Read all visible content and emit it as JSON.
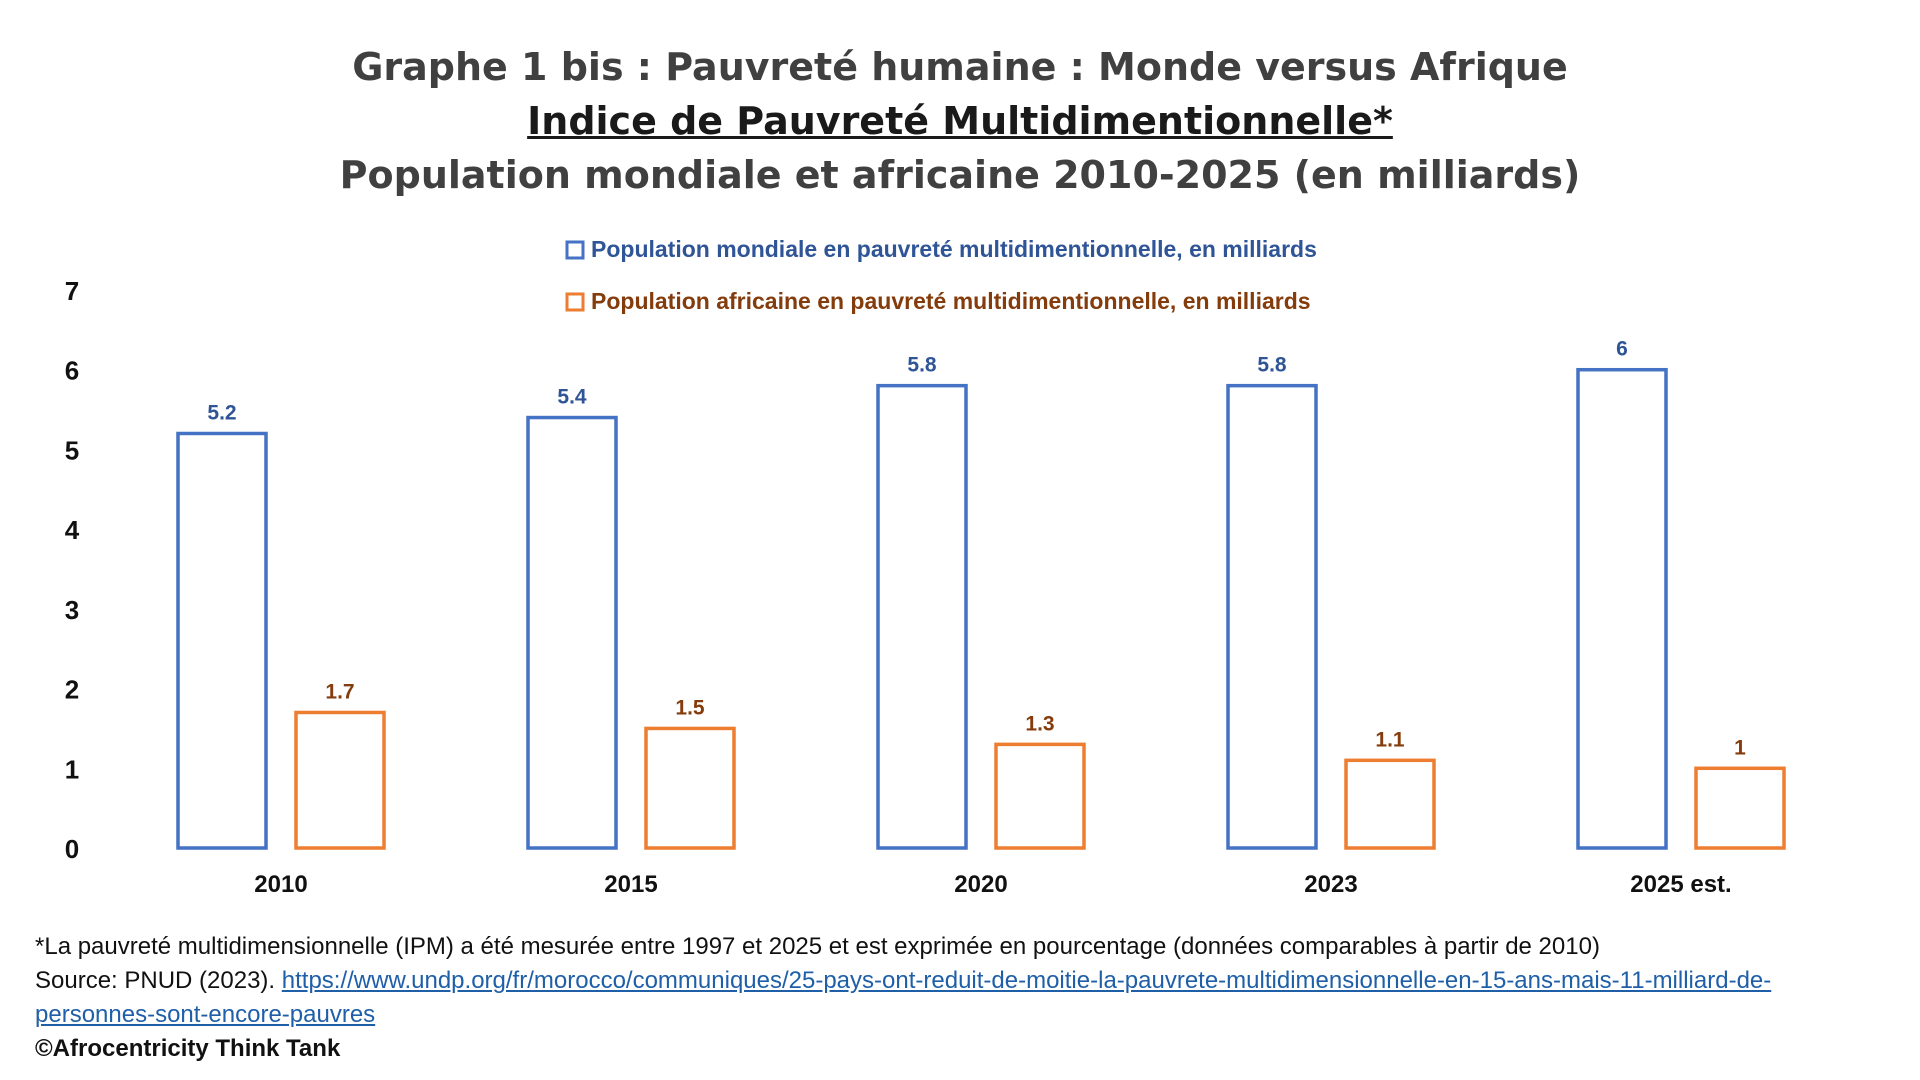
{
  "titles": {
    "line1": "Graphe 1 bis : Pauvreté humaine : Monde versus Afrique",
    "line2": "Indice de Pauvreté Multidimentionnelle*",
    "line3": "Population mondiale et africaine 2010-2025 (en milliards)"
  },
  "colors": {
    "world": "#4472c4",
    "africa": "#ed7d31",
    "world_text": "#2f5597",
    "africa_text": "#843c0c"
  },
  "chart_data": {
    "type": "bar",
    "categories": [
      "2010",
      "2015",
      "2020",
      "2023",
      "2025 est."
    ],
    "series": [
      {
        "name": "Population mondiale en pauvreté multidimentionnelle, en milliards",
        "values": [
          5.2,
          5.4,
          5.8,
          5.8,
          6
        ],
        "labels": [
          "5.2",
          "5.4",
          "5.8",
          "5.8",
          "6"
        ]
      },
      {
        "name": "Population africaine en pauvreté multidimentionnelle, en milliards",
        "values": [
          1.7,
          1.5,
          1.3,
          1.1,
          1
        ],
        "labels": [
          "1.7",
          "1.5",
          "1.3",
          "1.1",
          "1"
        ]
      }
    ],
    "yticks": [
      "0",
      "1",
      "2",
      "3",
      "4",
      "5",
      "6",
      "7"
    ],
    "ylim": [
      0,
      7
    ],
    "title": "Population mondiale et africaine 2010-2025 (en milliards)",
    "xlabel": "",
    "ylabel": "",
    "legend_position": "top-center",
    "grid": false
  },
  "footer": {
    "note": "*La pauvreté multidimensionnelle (IPM) a été mesurée entre 1997 et 2025 et est exprimée en pourcentage (données comparables à partir de 2010)",
    "source_prefix": "Source: PNUD (2023). ",
    "source_url": "https://www.undp.org/fr/morocco/communiques/25-pays-ont-reduit-de-moitie-la-pauvrete-multidimensionnelle-en-15-ans-mais-11-milliard-de-personnes-sont-encore-pauvres",
    "credit": "©Afrocentricity Think Tank"
  }
}
